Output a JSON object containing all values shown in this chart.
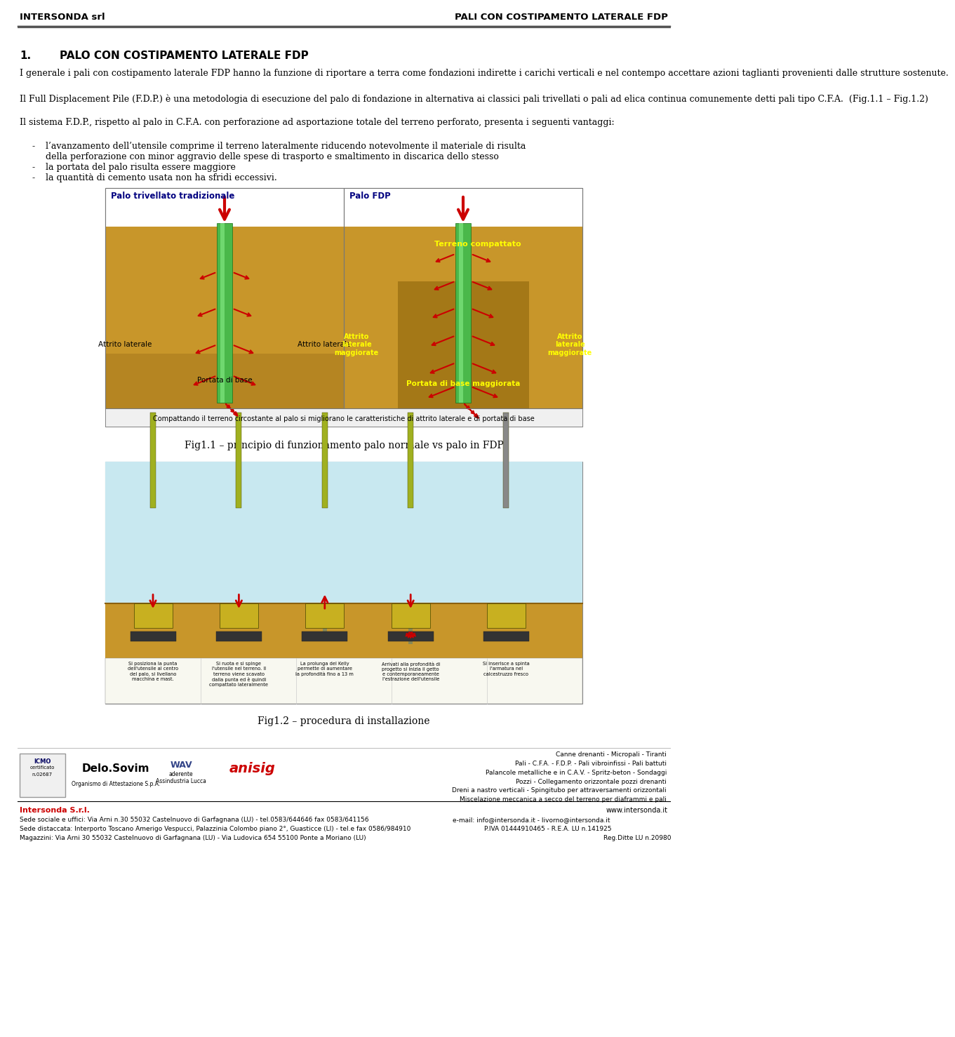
{
  "page_width": 9.6,
  "page_height": 14.58,
  "bg_color": "#ffffff",
  "header_left": "INTERSONDA srl",
  "header_right": "PALI CON COSTIPAMENTO LATERALE FDP",
  "section_title_num": "1.",
  "section_title_text": "PALO CON COSTIPAMENTO LATERALE FDP",
  "body_text_1": "I generale i pali con costipamento laterale FDP hanno la funzione di riportare a terra come fondazioni indirette i carichi verticali e nel contempo accettare azioni taglianti provenienti dalle strutture sostenute.",
  "body_text_2": "Il Full Displacement Pile (F.D.P.) è una metodologia di esecuzione del palo di fondazione in alternativa ai classici pali trivellati o pali ad elica continua comunemente detti pali tipo C.F.A.  (Fig.1.1 – Fig.1.2)",
  "body_text_3": "Il sistema F.D.P., rispetto al palo in C.F.A. con perforazione ad asportazione totale del terreno perforato, presenta i seguenti vantaggi:",
  "bullet_dash": "-",
  "bullet_1a": "l’avanzamento dell’utensile comprime il terreno lateralmente riducendo notevolmente il materiale di risulta",
  "bullet_1b": "della perforazione con minor aggravio delle spese di trasporto e smaltimento in discarica dello stesso",
  "bullet_2": "la portata del palo risulta essere maggiore",
  "bullet_3": "la quantità di cemento usata non ha sfridi eccessivi.",
  "fig1_caption": "Fig1.1 – principio di funzionamento palo normale vs palo in FDP",
  "fig2_caption": "Fig1.2 – procedura di installazione",
  "fig1_left_title": "Palo trivellato tradizionale",
  "fig1_right_title": "Palo FDP",
  "fig1_terreno": "Terreno compattato",
  "fig1_attrito_lat": "Attrito laterale",
  "fig1_attrito_mag": "Attrito\nlaterale\nmaggiorate",
  "fig1_portata": "Portata di base",
  "fig1_portata_mag": "Portata di base maggiorata",
  "fig1_caption_box": "Compattando il terreno circostante al palo si migliorano le caratteristiche di attrito laterale e di portata di base",
  "footer_company": "Intersonda S.r.l.",
  "footer_address1": "Sede sociale e uffici: Via Arni n.30 55032 Castelnuovo di Garfagnana (LU) - tel.0583/644646 fax 0583/641156",
  "footer_address2": "Sede distaccata: Interporto Toscano Amerigo Vespucci, Palazzinia Colombo piano 2°, Guasticce (LI) - tel.e fax 0586/984910",
  "footer_address3": "Magazzini: Via Arni 30 55032 Castelnuovo di Garfagnana (LU) - Via Ludovica 654 55100 Ponte a Moriano (LU)",
  "footer_web": "www.intersonda.it",
  "footer_email": "e-mail: info@intersonda.it - livorno@intersonda.it",
  "footer_piva": "P.IVA 01444910465 - R.E.A. LU n.141925",
  "footer_reg": "Reg.Ditte LU n.20980",
  "right_col_text": "Canne drenanti - Micropali - Tiranti\nPali - C.F.A. - F.D.P. - Pali vibroinfissi - Pali battuti\nPalancole metalliche e in C.A.V. - Spritz-beton - Sondaggi\nPozzi - Collegamento orizzontale pozzi drenanti\nDreni a nastro verticali - Spingitubo per attraversamenti orizzontali\nMiscelazione meccanica a secco del terreno per diaframmi e pali",
  "step_texts": [
    "Si posiziona la punta\ndell'utensile al centro\ndel palo, si livellano\nmacchina e mast.",
    "Si ruota e si spinge\nl'utensile nel terreno. Il\nterreno viene scavato\ndalla punta ed è quindi\ncompattato lateralmente",
    "La prolunga del Kelly\npermette di aumentare\nla profondità fino a 13 m",
    "Arrivati alla profondità di\nprogetto si inizia il getto\ne contemporaneamente\nl'estrazione dell'utensile",
    "Si inserisce a spinta\nl'armatura nel\ncalcestruzzo fresco"
  ]
}
